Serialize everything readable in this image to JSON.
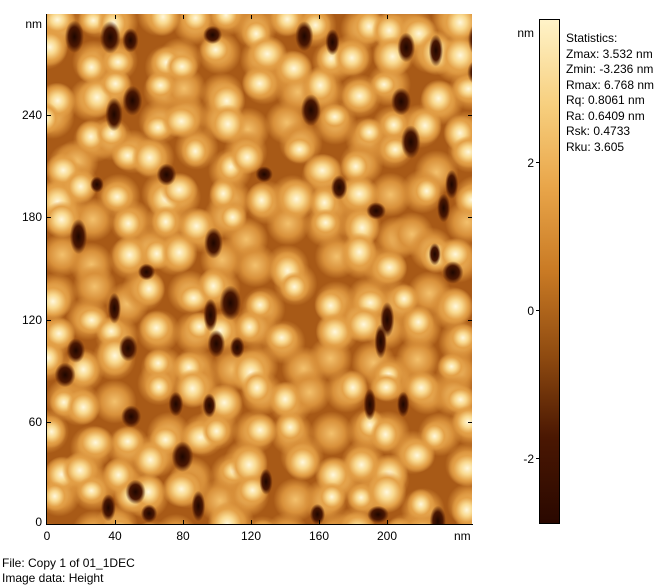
{
  "image_axes": {
    "y_unit": "nm",
    "x_unit": "nm",
    "y_ticks": [
      "240",
      "180",
      "120",
      "60",
      "0"
    ],
    "x_ticks": [
      "0",
      "40",
      "80",
      "120",
      "160",
      "200"
    ]
  },
  "colorbar": {
    "unit": "nm",
    "ticks": [
      "2",
      "0",
      "-2"
    ],
    "colors": [
      "#fff3c8",
      "#f7cf7e",
      "#e9a64a",
      "#c97a24",
      "#8e4a10",
      "#4a1702",
      "#2a0800"
    ]
  },
  "statistics": {
    "title": "Statistics:",
    "lines": [
      "Zmax: 3.532 nm",
      "Zmin: -3.236 nm",
      "Rmax: 6.768 nm",
      "Rq: 0.8061 nm",
      "Ra: 0.6409 nm",
      "Rsk: 0.4733",
      "Rku: 3.605"
    ]
  },
  "footer": {
    "file": "File: Copy 1 of 01_1DEC",
    "image_data": "Image data: Height"
  }
}
